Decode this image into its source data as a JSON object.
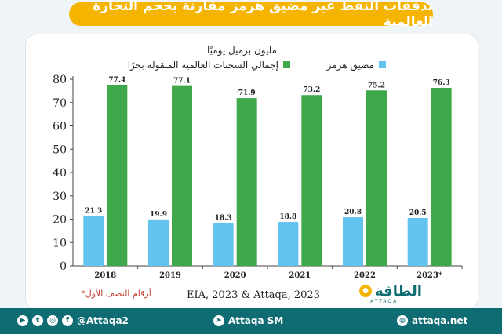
{
  "title": "تدفقات النفط عبر مضيق هرمز مقارنة بحجم التجارة العالمية",
  "unit_label": "مليون برميل يوميًا",
  "source": "EIA, 2023 & Attaqa, 2023",
  "note": "*أرقام النصف الأول",
  "logo_text": "الطاقة",
  "logo_sub": "ATTAQA",
  "footer": {
    "social1": "@Attaqa2",
    "social2": "Attaqa SM",
    "website": "attaqa.net"
  },
  "colors": {
    "green": "#3ea84a",
    "blue": "#62c3ee",
    "title_bg": "#f5b400",
    "footer_bg": "#0f6c73"
  },
  "chart_data": {
    "type": "bar",
    "categories": [
      "2018",
      "2019",
      "2020",
      "2021",
      "2022",
      "2023*"
    ],
    "series": [
      {
        "name": "مضيق هرمز",
        "values": [
          21.3,
          19.9,
          18.3,
          18.8,
          20.8,
          20.5
        ],
        "color": "#62c3ee"
      },
      {
        "name": "إجمالي الشحنات العالمية المنقولة بحرًا",
        "values": [
          77.4,
          77.1,
          71.9,
          73.2,
          75.2,
          76.3
        ],
        "color": "#3ea84a"
      }
    ],
    "ylim": [
      0,
      80
    ],
    "yticks": [
      0,
      10,
      20,
      30,
      40,
      50,
      60,
      70,
      80
    ],
    "grid": false,
    "legend_position": "top"
  }
}
